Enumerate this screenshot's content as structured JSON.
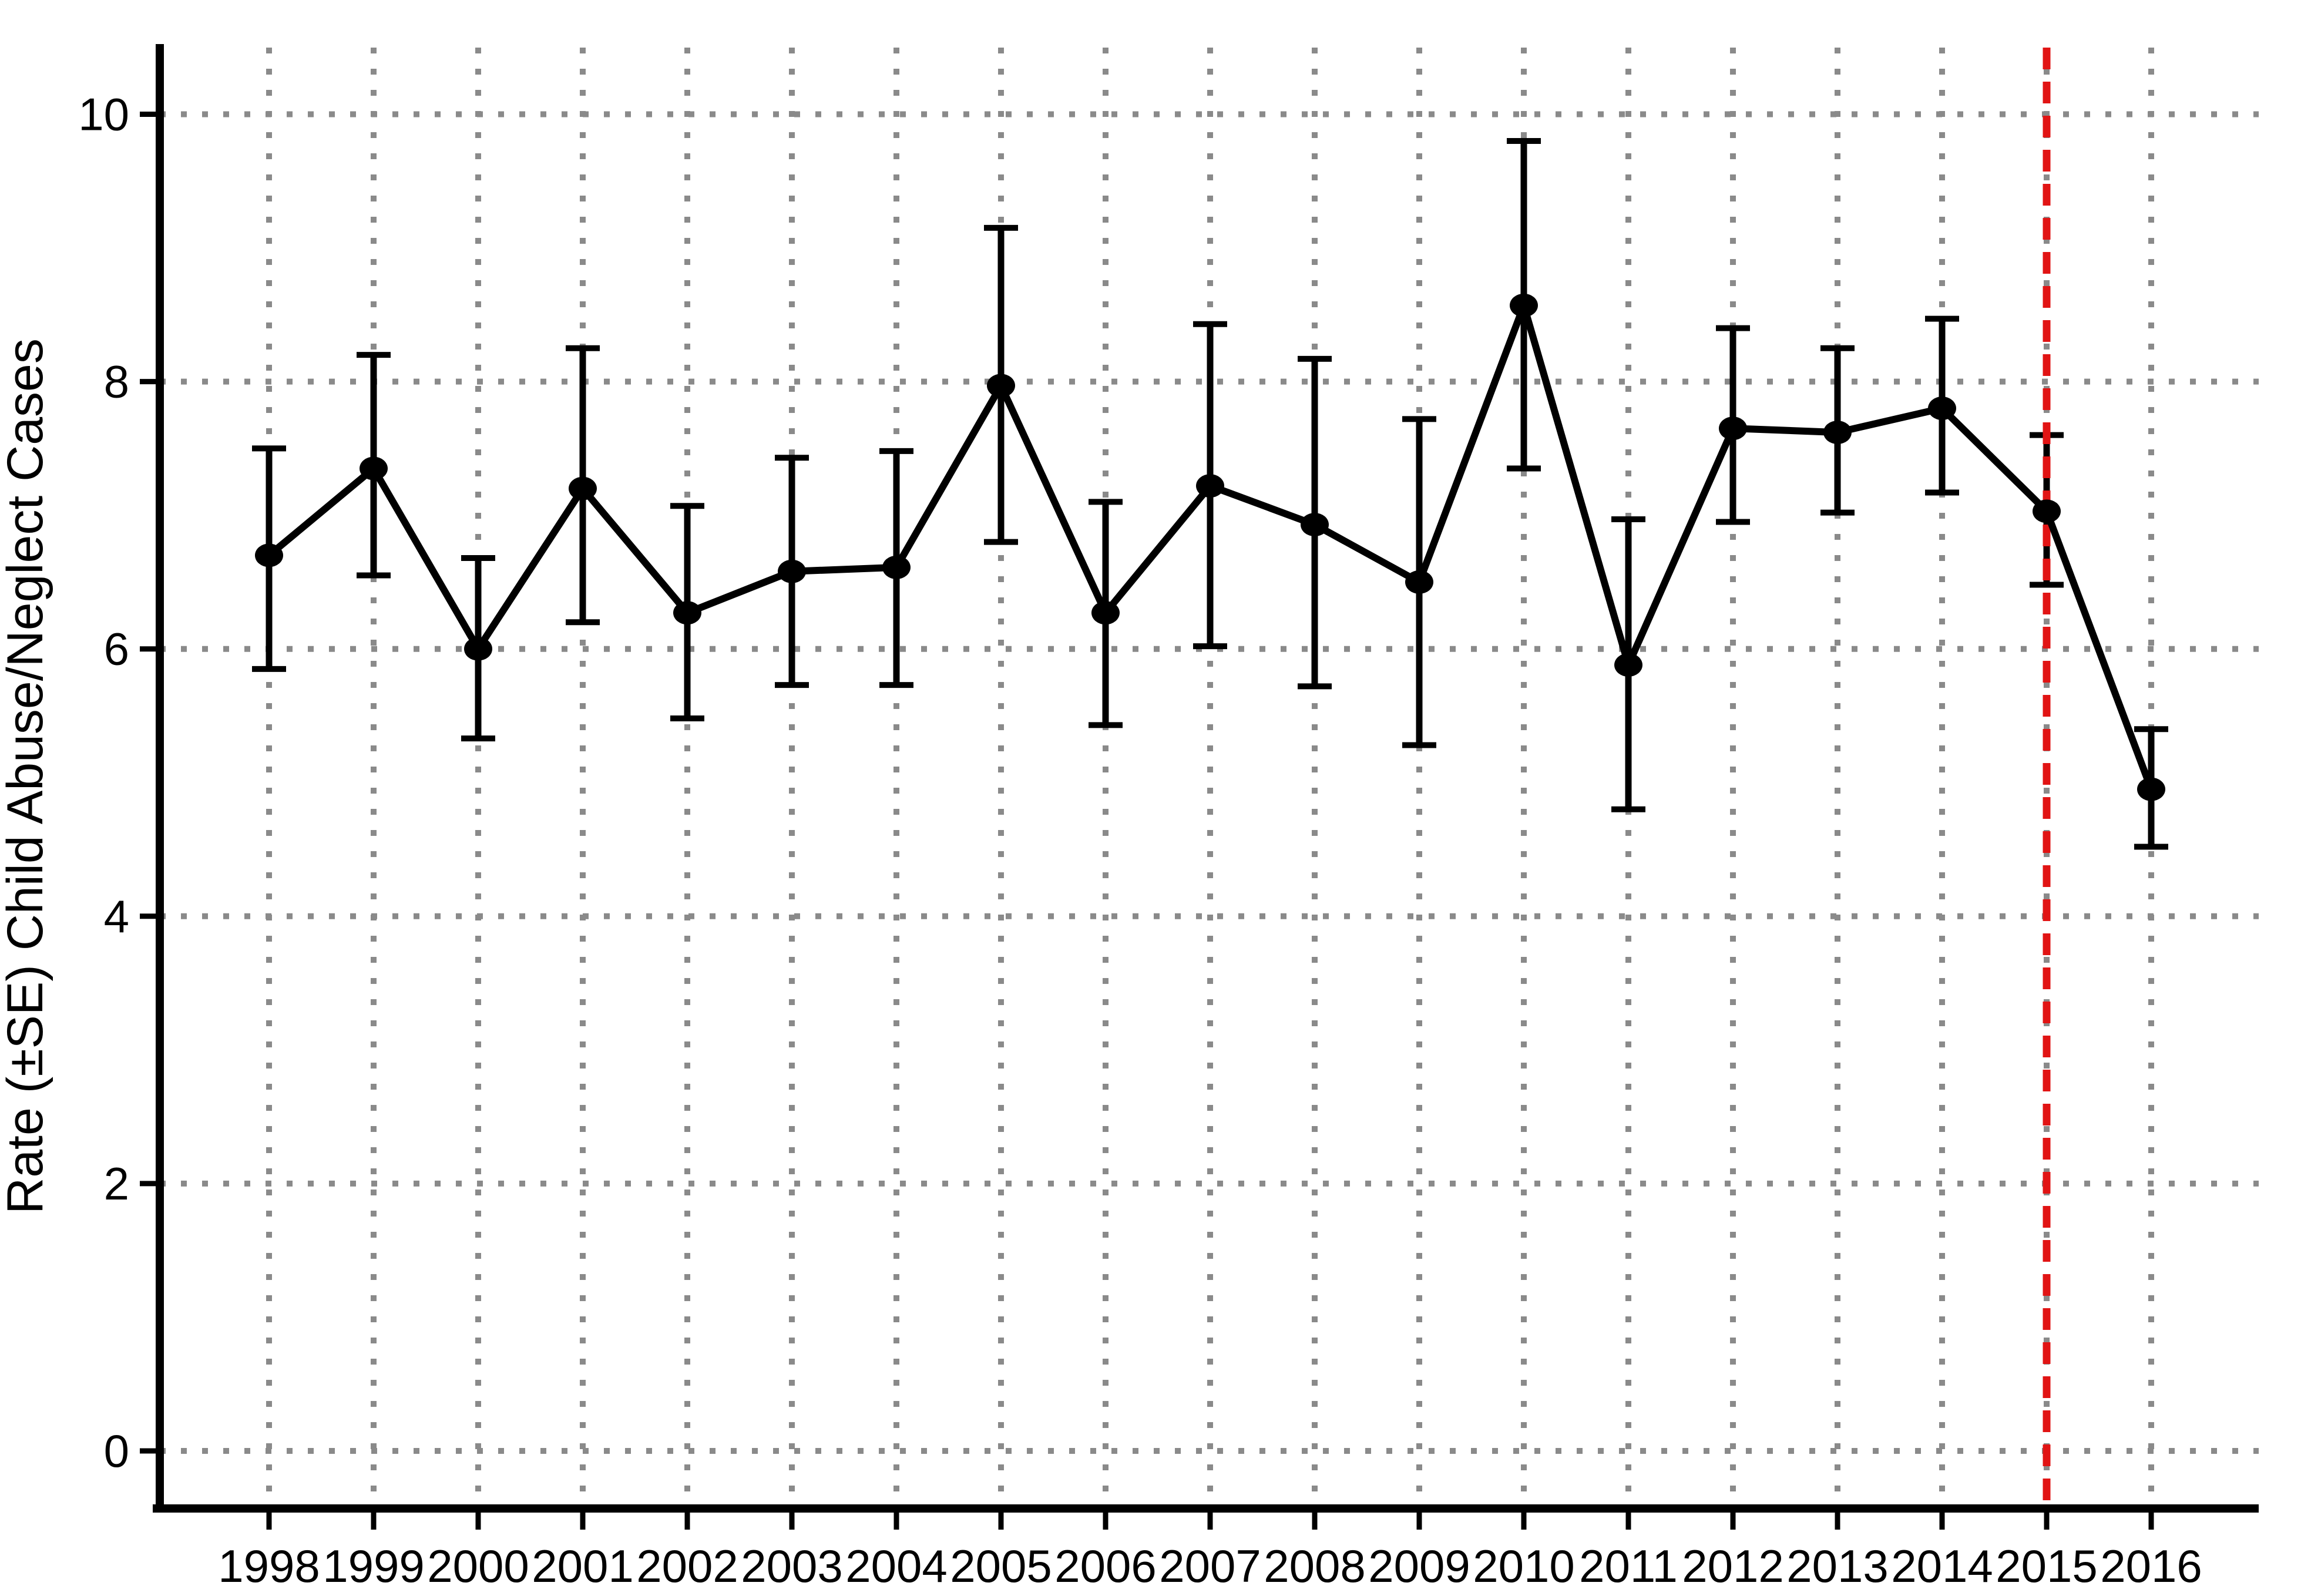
{
  "figure": {
    "background": "#ffffff",
    "description": "Line chart with SE error bars of child abuse/neglect case rates by year, 1998-2016, with red dashed reference line at 2015"
  },
  "colors": {
    "series_line": "#000000",
    "marker": "#000000",
    "error_bar": "#000000",
    "grid": "#8a8a8a",
    "axis": "#000000",
    "reference_line_red": "#e11414",
    "background": "#ffffff"
  },
  "chart_data": {
    "type": "line",
    "title": "",
    "xlabel": "",
    "ylabel": "Rate (±SE) Child Abuse/Neglect Cases",
    "x": [
      1998,
      1999,
      2000,
      2001,
      2002,
      2003,
      2004,
      2005,
      2006,
      2007,
      2008,
      2009,
      2010,
      2011,
      2012,
      2013,
      2014,
      2015,
      2016
    ],
    "x_tick_labels": [
      "1998",
      "1999",
      "2000",
      "2001",
      "2002",
      "2003",
      "2004",
      "2005",
      "2006",
      "2007",
      "2008",
      "2009",
      "2010",
      "2011",
      "2012",
      "2013",
      "2014",
      "2015",
      "2016"
    ],
    "series": [
      {
        "name": "Rate (±SE) Child Abuse/Neglect Cases",
        "marker": "circle",
        "color": "#000000",
        "values": [
          6.7,
          7.35,
          6.0,
          7.2,
          6.27,
          6.58,
          6.61,
          7.97,
          6.27,
          7.22,
          6.93,
          6.5,
          8.57,
          5.88,
          7.65,
          7.62,
          7.8,
          7.03,
          4.95
        ],
        "err_low": [
          5.85,
          6.55,
          5.33,
          6.2,
          5.48,
          5.73,
          5.73,
          6.8,
          5.43,
          6.02,
          5.72,
          5.28,
          7.35,
          4.8,
          6.95,
          7.02,
          7.17,
          6.48,
          4.52
        ],
        "err_high": [
          7.5,
          8.2,
          6.68,
          8.25,
          7.07,
          7.43,
          7.48,
          9.15,
          7.1,
          8.43,
          8.17,
          7.72,
          9.8,
          6.97,
          8.4,
          8.25,
          8.47,
          7.6,
          5.4
        ]
      }
    ],
    "yticks": [
      0,
      2,
      4,
      6,
      8,
      10
    ],
    "ytick_labels": [
      "0",
      "2",
      "4",
      "6",
      "8",
      "10"
    ],
    "ylim": [
      -0.45,
      10.65
    ],
    "grid": {
      "style": "dotted",
      "color": "#8a8a8a",
      "horizontal": true,
      "vertical": true
    },
    "legend": "none",
    "annotations": [
      {
        "type": "vline",
        "x": 2015,
        "style": "dashed",
        "color": "#e11414"
      }
    ]
  }
}
